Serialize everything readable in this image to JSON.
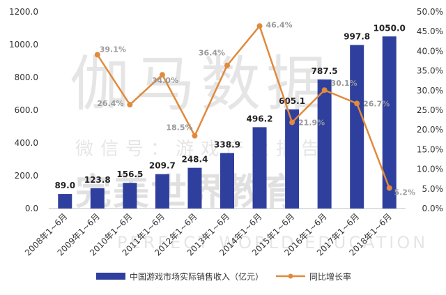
{
  "chart_data": {
    "type": "bar",
    "categories": [
      "2008年1~6月",
      "2009年1~6月",
      "2010年1~6月",
      "2011年1~6月",
      "2012年1~6月",
      "2013年1~6月",
      "2014年1~6月",
      "2015年1~6月",
      "2016年1~6月",
      "2017年1~6月",
      "2018年1~6月"
    ],
    "series": [
      {
        "name": "中国游戏市场实际销售收入（亿元）",
        "type": "bar",
        "axis": "left",
        "color": "#2e3f9e",
        "values": [
          89.0,
          123.8,
          156.5,
          209.7,
          248.4,
          338.9,
          496.2,
          605.1,
          787.5,
          997.8,
          1050.0
        ],
        "labels": [
          "89.0",
          "123.8",
          "156.5",
          "209.7",
          "248.4",
          "338.9",
          "496.2",
          "605.1",
          "787.5",
          "997.8",
          "1050.0"
        ]
      },
      {
        "name": "同比增长率",
        "type": "line",
        "axis": "right",
        "color": "#e08a3c",
        "values": [
          null,
          39.1,
          26.4,
          34.0,
          18.5,
          36.4,
          46.4,
          21.9,
          30.1,
          26.7,
          5.2
        ],
        "labels": [
          "",
          "39.1%",
          "26.4%",
          "34.0%",
          "18.5%",
          "36.4%",
          "46.4%",
          "21.9%",
          "30.1%",
          "26.7%",
          "5.2%"
        ]
      }
    ],
    "y_left": {
      "ylim": [
        0,
        1200
      ],
      "ticks": [
        0,
        200,
        400,
        600,
        800,
        1000,
        1200
      ],
      "tick_labels": [
        "0.0",
        "200.0",
        "400.0",
        "600.0",
        "800.0",
        "1000.0",
        "1200.0"
      ]
    },
    "y_right": {
      "ylim": [
        0,
        50
      ],
      "ticks": [
        0,
        5,
        10,
        15,
        20,
        25,
        30,
        35,
        40,
        45,
        50
      ],
      "tick_labels": [
        "0.0%",
        "5.0%",
        "10.0%",
        "15.0%",
        "20.0%",
        "25.0%",
        "30.0%",
        "35.0%",
        "40.0%",
        "45.0%",
        "50.0%"
      ]
    },
    "title": "",
    "xlabel": "",
    "grid": false,
    "legend_position": "bottom"
  },
  "legend": {
    "bar_label": "中国游戏市场实际销售收入（亿元）",
    "line_label": "同比增长率"
  },
  "watermark": {
    "line1": "伽马数据",
    "line2": "微信号：游戏产业报告",
    "line3": "完美世界教育",
    "line4": "PERFECT WORLD EDUCATION"
  }
}
